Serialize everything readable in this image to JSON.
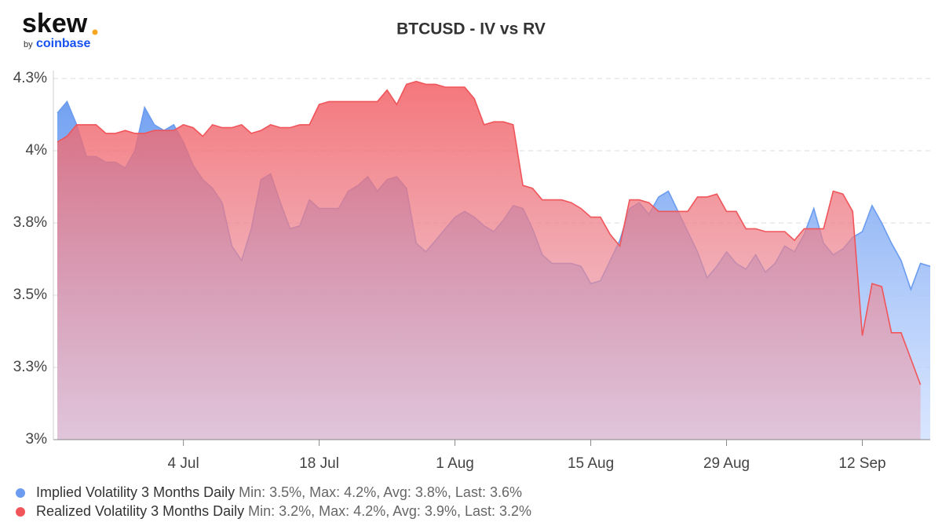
{
  "logo": {
    "name": "skew",
    "by": "by",
    "brand": "coinbase"
  },
  "chart_data": {
    "type": "area",
    "title": "BTCUSD - IV vs RV",
    "categories": [
      null,
      null,
      null,
      null,
      null,
      null,
      null,
      null,
      null,
      null,
      null,
      null,
      null,
      "4 Jul",
      null,
      null,
      null,
      null,
      null,
      null,
      null,
      null,
      null,
      null,
      null,
      null,
      null,
      "18 Jul",
      null,
      null,
      null,
      null,
      null,
      null,
      null,
      null,
      null,
      null,
      null,
      null,
      null,
      "1 Aug",
      null,
      null,
      null,
      null,
      null,
      null,
      null,
      null,
      null,
      null,
      null,
      null,
      null,
      "15 Aug",
      null,
      null,
      null,
      null,
      null,
      null,
      null,
      null,
      null,
      null,
      null,
      null,
      null,
      "29 Aug",
      null,
      null,
      null,
      null,
      null,
      null,
      null,
      null,
      null,
      null,
      null,
      null,
      null,
      "12 Sep",
      null,
      null,
      null,
      null,
      null,
      null,
      null
    ],
    "series": [
      {
        "name": "Implied Volatility 3 Months Daily",
        "stats": "Min: 3.5%, Max: 4.2%, Avg: 3.8%, Last: 3.6%",
        "color": "#6b9cf0",
        "values": [
          4.13,
          4.17,
          4.09,
          3.98,
          3.98,
          3.96,
          3.96,
          3.94,
          4.0,
          4.15,
          4.09,
          4.07,
          4.09,
          4.03,
          3.95,
          3.9,
          3.87,
          3.82,
          3.67,
          3.62,
          3.73,
          3.9,
          3.92,
          3.82,
          3.73,
          3.74,
          3.83,
          3.8,
          3.8,
          3.8,
          3.86,
          3.88,
          3.91,
          3.86,
          3.9,
          3.91,
          3.87,
          3.68,
          3.65,
          3.69,
          3.73,
          3.77,
          3.79,
          3.77,
          3.74,
          3.72,
          3.76,
          3.81,
          3.8,
          3.73,
          3.64,
          3.61,
          3.61,
          3.61,
          3.6,
          3.54,
          3.55,
          3.62,
          3.69,
          3.8,
          3.82,
          3.78,
          3.84,
          3.86,
          3.79,
          3.72,
          3.65,
          3.56,
          3.6,
          3.65,
          3.61,
          3.59,
          3.64,
          3.58,
          3.61,
          3.67,
          3.65,
          3.71,
          3.8,
          3.68,
          3.64,
          3.66,
          3.7,
          3.72,
          3.81,
          3.75,
          3.68,
          3.62,
          3.52,
          3.61,
          3.6
        ]
      },
      {
        "name": "Realized Volatility 3 Months Daily",
        "stats": "Min: 3.2%, Max: 4.2%, Avg: 3.9%, Last: 3.2%",
        "color": "#f0555a",
        "values": [
          4.03,
          4.05,
          4.09,
          4.09,
          4.09,
          4.06,
          4.06,
          4.07,
          4.06,
          4.06,
          4.07,
          4.07,
          4.07,
          4.09,
          4.08,
          4.05,
          4.09,
          4.08,
          4.08,
          4.09,
          4.06,
          4.07,
          4.09,
          4.08,
          4.08,
          4.09,
          4.09,
          4.16,
          4.17,
          4.17,
          4.17,
          4.17,
          4.17,
          4.17,
          4.21,
          4.16,
          4.23,
          4.24,
          4.23,
          4.23,
          4.22,
          4.22,
          4.22,
          4.18,
          4.09,
          4.1,
          4.1,
          4.09,
          3.88,
          3.87,
          3.83,
          3.83,
          3.83,
          3.82,
          3.8,
          3.77,
          3.77,
          3.71,
          3.67,
          3.83,
          3.83,
          3.82,
          3.79,
          3.79,
          3.79,
          3.79,
          3.84,
          3.84,
          3.85,
          3.79,
          3.79,
          3.73,
          3.73,
          3.72,
          3.72,
          3.72,
          3.69,
          3.73,
          3.73,
          3.73,
          3.86,
          3.85,
          3.79,
          3.36,
          3.54,
          3.53,
          3.37,
          3.37,
          3.28,
          3.19,
          null
        ]
      }
    ],
    "ylim": [
      3,
      4.25
    ],
    "yticks": [
      {
        "value": 3,
        "label": "3%"
      },
      {
        "value": 3.25,
        "label": "3.3%"
      },
      {
        "value": 3.5,
        "label": "3.5%"
      },
      {
        "value": 3.75,
        "label": "3.8%"
      },
      {
        "value": 4,
        "label": "4%"
      },
      {
        "value": 4.25,
        "label": "4.3%"
      }
    ],
    "grid": true
  }
}
